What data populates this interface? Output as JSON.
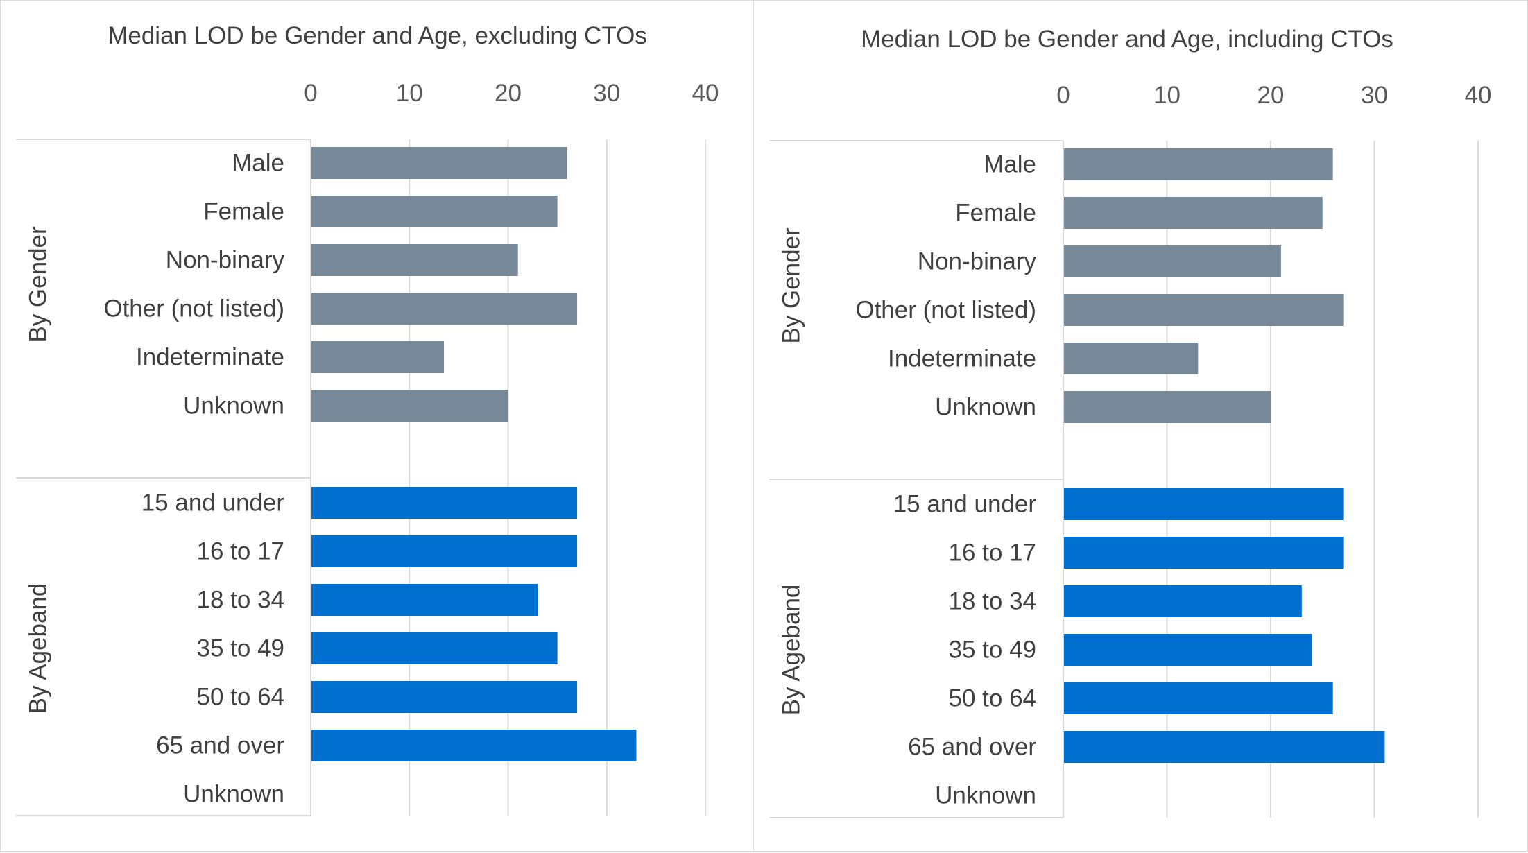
{
  "chart_data": [
    {
      "type": "bar",
      "orientation": "horizontal",
      "title": "Median LOD be Gender and Age, excluding CTOs",
      "xlim": [
        0,
        40
      ],
      "xticks": [
        "0",
        "10",
        "20",
        "30",
        "40"
      ],
      "grid": true,
      "groups": [
        {
          "label": "By Gender",
          "color": "#778899",
          "categories": [
            "Male",
            "Female",
            "Non-binary",
            "Other (not listed)",
            "Indeterminate",
            "Unknown"
          ],
          "values": [
            26,
            25,
            21,
            27,
            13.5,
            20
          ]
        },
        {
          "label": "By Ageband",
          "color": "#0070D0",
          "categories": [
            "15 and under",
            "16 to 17",
            "18 to 34",
            "35 to 49",
            "50 to 64",
            "65 and over",
            "Unknown"
          ],
          "values": [
            27,
            27,
            23,
            25,
            27,
            33,
            null
          ]
        }
      ]
    },
    {
      "type": "bar",
      "orientation": "horizontal",
      "title": "Median LOD be Gender and Age, including CTOs",
      "xlim": [
        0,
        40
      ],
      "xticks": [
        "0",
        "10",
        "20",
        "30",
        "40"
      ],
      "grid": true,
      "groups": [
        {
          "label": "By Gender",
          "color": "#778899",
          "categories": [
            "Male",
            "Female",
            "Non-binary",
            "Other (not listed)",
            "Indeterminate",
            "Unknown"
          ],
          "values": [
            26,
            25,
            21,
            27,
            13,
            20
          ]
        },
        {
          "label": "By Ageband",
          "color": "#0070D0",
          "categories": [
            "15 and under",
            "16 to 17",
            "18 to 34",
            "35 to 49",
            "50 to 64",
            "65 and over",
            "Unknown"
          ],
          "values": [
            27,
            27,
            23,
            24,
            26,
            31,
            null
          ]
        }
      ]
    }
  ]
}
